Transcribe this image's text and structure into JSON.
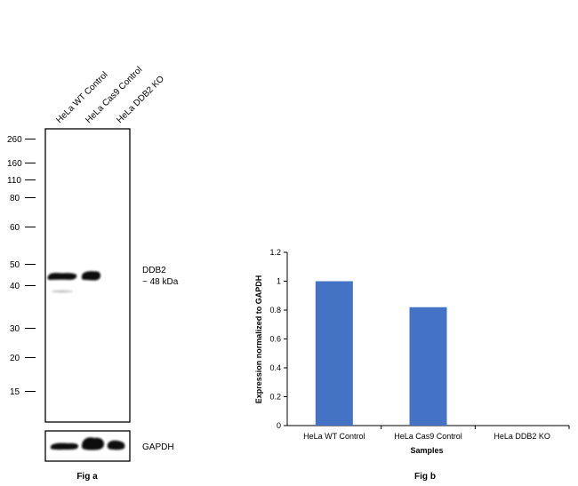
{
  "fig_a": {
    "lane_labels": [
      "HeLa WT Control",
      "HeLa Cas9 Control",
      "HeLa DDB2 KO"
    ],
    "markers": [
      "260",
      "160",
      "110",
      "80",
      "60",
      "50",
      "40",
      "30",
      "20",
      "15"
    ],
    "marker_kda": [
      260,
      160,
      110,
      80,
      60,
      50,
      40,
      30,
      20,
      15
    ],
    "target_label": "DDB2",
    "target_size": "~ 48 kDa",
    "loading_control": "GAPDH",
    "caption": "Fig a",
    "ddb2_band_present": [
      true,
      true,
      false
    ],
    "gapdh_band_present": [
      true,
      true,
      true
    ]
  },
  "fig_b": {
    "caption": "Fig b"
  },
  "chart_data": {
    "type": "bar",
    "categories": [
      "HeLa WT Control",
      "HeLa Cas9 Control",
      "HeLa DDB2 KO"
    ],
    "values": [
      1.0,
      0.82,
      0.0
    ],
    "xlabel": "Samples",
    "ylabel": "Expression normalized to GAPDH",
    "ylim": [
      0,
      1.2
    ],
    "yticks": [
      "0",
      "0.2",
      "0.4",
      "0.6",
      "0.8",
      "1",
      "1.2"
    ],
    "grid": false,
    "color": "#4472C4"
  }
}
